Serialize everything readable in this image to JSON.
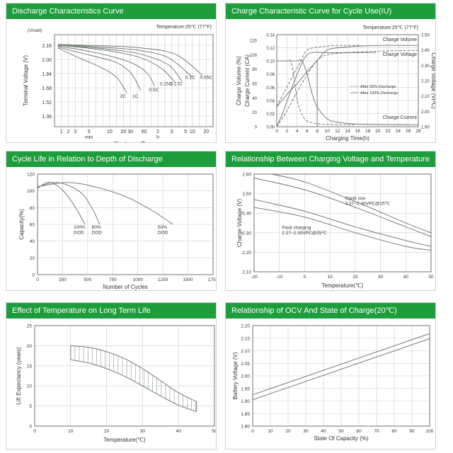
{
  "panels": [
    {
      "id": "discharge",
      "header": "Discharge Characteristics Curve",
      "chart_data": {
        "type": "line",
        "title": "Discharge Characteristics Curve",
        "xlabel": "Discharge Time",
        "ylabel": "Terminal Voltage  (V)",
        "yunit": "(V/cell)",
        "note": "Temperature:25℃ (77°F)",
        "x_ticks": [
          "1",
          "2",
          "3",
          "5",
          "10",
          "20",
          "30",
          "60",
          "2",
          "3",
          "5",
          "10",
          "20"
        ],
        "x_groups": [
          "min",
          "h"
        ],
        "y_ticks": [
          1.36,
          1.52,
          1.68,
          1.84,
          2.0,
          2.16
        ],
        "ylim": [
          1.24,
          2.28
        ],
        "curve_labels": [
          "2C",
          "1C",
          "0.5C",
          "0.25C",
          "0.17C",
          "0.1C",
          "0.05C"
        ],
        "series": [
          {
            "name": "2C",
            "x": [
              0,
              3,
              6,
              8,
              9,
              10
            ],
            "y": [
              2.13,
              2.02,
              1.92,
              1.83,
              1.75,
              1.62
            ]
          },
          {
            "name": "1C",
            "x": [
              0,
              4,
              8,
              10,
              11,
              12
            ],
            "y": [
              2.14,
              2.06,
              1.98,
              1.89,
              1.8,
              1.65
            ]
          },
          {
            "name": "0.5C",
            "x": [
              0,
              4,
              8,
              11,
              13,
              14
            ],
            "y": [
              2.15,
              2.1,
              2.03,
              1.95,
              1.84,
              1.7
            ]
          },
          {
            "name": "0.25C",
            "x": [
              0,
              4,
              8,
              12,
              15,
              17
            ],
            "y": [
              2.16,
              2.13,
              2.09,
              2.02,
              1.9,
              1.74
            ]
          },
          {
            "name": "0.17C",
            "x": [
              0,
              4,
              8,
              12,
              16,
              18
            ],
            "y": [
              2.16,
              2.14,
              2.11,
              2.06,
              1.94,
              1.75
            ]
          },
          {
            "name": "0.1C",
            "x": [
              0,
              4,
              8,
              12,
              16,
              19.5
            ],
            "y": [
              2.17,
              2.15,
              2.13,
              2.1,
              2.02,
              1.8
            ]
          },
          {
            "name": "0.05C",
            "x": [
              0,
              4,
              8,
              12,
              17,
              21
            ],
            "y": [
              2.17,
              2.16,
              2.15,
              2.13,
              2.06,
              1.82
            ]
          }
        ]
      }
    },
    {
      "id": "charge",
      "header": "Charge Characteristic Curve for Cycle Use(IU)",
      "chart_data": {
        "type": "line",
        "title": "Charge Characteristic Curve for Cycle Use(IU)",
        "xlabel": "Charging Time(h)",
        "ylabel_left1": "Charge Volume (%)",
        "ylabel_left2": "Charge Current (CA)",
        "ylabel_right": "Charge Voltage (VPC)",
        "note": "Temperature:25℃ (77°F)",
        "x_ticks": [
          0,
          2,
          4,
          6,
          8,
          10,
          12,
          14,
          16,
          18,
          20,
          22,
          24,
          26,
          28
        ],
        "xlim": [
          0,
          28
        ],
        "volume_ticks": [
          0,
          20,
          40,
          60,
          80,
          100,
          120
        ],
        "current_ticks": [
          0.0,
          0.02,
          0.04,
          0.06,
          0.08,
          0.1,
          0.12,
          0.14
        ],
        "voltage_ticks": [
          1.9,
          2.0,
          2.1,
          2.2,
          2.3,
          2.4,
          2.5
        ],
        "labels": [
          "Charge Volume",
          "Charge Voltage",
          "Charge Current"
        ],
        "legend": [
          "After 50% Discharge",
          "After 100% Discharge"
        ],
        "series": [
          {
            "name": "Charge Volume",
            "x": [
              0,
              2,
              4,
              6,
              8,
              10,
              14,
              20,
              28
            ],
            "y": [
              0,
              22,
              48,
              72,
              92,
              100,
              103,
              105,
              106
            ]
          },
          {
            "name": "Charge Voltage",
            "x": [
              0,
              2,
              4,
              6,
              8,
              10,
              14,
              20,
              28
            ],
            "y": [
              2.03,
              2.11,
              2.18,
              2.26,
              2.33,
              2.4,
              2.42,
              2.43,
              2.43
            ]
          },
          {
            "name": "Charge Current",
            "x": [
              0,
              2,
              4,
              5,
              6,
              7,
              8,
              10,
              12,
              16,
              28
            ],
            "y": [
              0.1,
              0.1,
              0.1,
              0.1,
              0.08,
              0.05,
              0.03,
              0.012,
              0.007,
              0.004,
              0.003
            ]
          }
        ]
      }
    },
    {
      "id": "cycle",
      "header": "Cycle Life in Relation to Depth of Discharge",
      "chart_data": {
        "type": "line",
        "title": "Cycle Life in Relation to Depth of Discharge",
        "xlabel": "Number of Cycles",
        "ylabel": "Capacity(%)",
        "x_ticks": [
          0,
          250,
          500,
          750,
          1000,
          1250,
          1500,
          1750
        ],
        "xlim": [
          0,
          1750
        ],
        "y_ticks": [
          0,
          20,
          40,
          60,
          80,
          100,
          120
        ],
        "ylim": [
          0,
          120
        ],
        "curve_labels": [
          "100%\nDOD",
          "80%\nDOD",
          "50%\nDOD"
        ],
        "series": [
          {
            "name": "100% DOD",
            "x": [
              0,
              100,
              200,
              300,
              400,
              470
            ],
            "y": [
              103,
              110,
              106,
              94,
              76,
              60
            ]
          },
          {
            "name": "80% DOD",
            "x": [
              0,
              150,
              300,
              450,
              550,
              620
            ],
            "y": [
              104,
              110,
              107,
              96,
              78,
              60
            ]
          },
          {
            "name": "50% DOD",
            "x": [
              0,
              300,
              600,
              900,
              1150,
              1350
            ],
            "y": [
              105,
              110,
              104,
              92,
              76,
              60
            ]
          }
        ]
      }
    },
    {
      "id": "voltage_temp",
      "header": "Relationship Between Charging Voltage and Temperature",
      "chart_data": {
        "type": "line",
        "title": "Relationship Between Charging Voltage and Temperature",
        "xlabel": "Temperature(℃)",
        "ylabel": "Charge Voltage  (V)",
        "x_ticks": [
          -20,
          -10,
          0,
          10,
          20,
          30,
          40,
          50
        ],
        "xlim": [
          -20,
          50
        ],
        "y_ticks": [
          2.1,
          2.2,
          2.3,
          2.4,
          2.5,
          2.6
        ],
        "ylim": [
          2.1,
          2.6
        ],
        "annotations": [
          "Cycle use\n2.37~2.40VPC@25℃",
          "Float charging\n2.27~2.30VPC@25℃"
        ],
        "series": [
          {
            "name": "cycle-upper",
            "x": [
              -13,
              0,
              20,
              40,
              50
            ],
            "y": [
              2.6,
              2.56,
              2.46,
              2.35,
              2.3
            ]
          },
          {
            "name": "cycle-lower",
            "x": [
              -20,
              0,
              20,
              40,
              50
            ],
            "y": [
              2.58,
              2.52,
              2.43,
              2.33,
              2.28
            ]
          },
          {
            "name": "float-upper",
            "x": [
              -20,
              0,
              20,
              40,
              50
            ],
            "y": [
              2.47,
              2.41,
              2.33,
              2.26,
              2.23
            ]
          },
          {
            "name": "float-lower",
            "x": [
              -20,
              0,
              20,
              40,
              50
            ],
            "y": [
              2.43,
              2.38,
              2.3,
              2.23,
              2.21
            ]
          }
        ]
      }
    },
    {
      "id": "temp_life",
      "header": "Effect of Temperature on Long Term Life",
      "chart_data": {
        "type": "area",
        "title": "Effect of Temperature on Long Term Life",
        "xlabel": "Temperature(℃)",
        "ylabel": "Lift Expectancy  (years)",
        "x_ticks": [
          0,
          10,
          20,
          30,
          40,
          50
        ],
        "xlim": [
          0,
          50
        ],
        "y_ticks": [
          0,
          5,
          10,
          15,
          20,
          25
        ],
        "ylim": [
          0,
          25
        ],
        "band": {
          "x": [
            10,
            15,
            20,
            25,
            30,
            35,
            40,
            45
          ],
          "upper": [
            20,
            19.6,
            18.5,
            16.8,
            14.3,
            11.3,
            8.3,
            6.1
          ],
          "lower": [
            16.5,
            15.7,
            14.3,
            12.4,
            10.0,
            7.5,
            5.2,
            3.6
          ]
        }
      }
    },
    {
      "id": "ocv",
      "header": "Relationship of OCV And State of Charge(20℃)",
      "chart_data": {
        "type": "line",
        "title": "Relationship of OCV And State of Charge(20℃)",
        "xlabel": "State Of Capacity (%)",
        "ylabel": "Battery Voltage (V)",
        "x_ticks": [
          0,
          10,
          20,
          30,
          40,
          50,
          60,
          70,
          80,
          90,
          100
        ],
        "xlim": [
          0,
          100
        ],
        "y_ticks": [
          1.8,
          1.85,
          1.9,
          1.95,
          2.0,
          2.05,
          2.1,
          2.15,
          2.2
        ],
        "ylim": [
          1.8,
          2.2
        ],
        "series": [
          {
            "name": "upper",
            "x": [
              0,
              100
            ],
            "y": [
              1.925,
              2.168
            ]
          },
          {
            "name": "lower",
            "x": [
              0,
              100
            ],
            "y": [
              1.905,
              2.148
            ]
          }
        ]
      }
    }
  ]
}
